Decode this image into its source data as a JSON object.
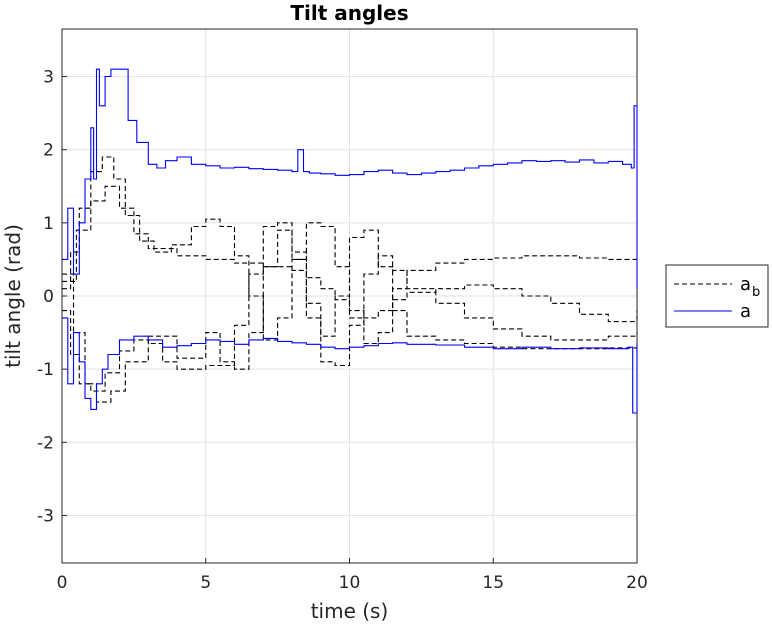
{
  "chart_data": {
    "type": "line",
    "title": "Tilt angles",
    "xlabel": "time (s)",
    "ylabel": "tilt angle (rad)",
    "xlim": [
      0,
      20
    ],
    "ylim": [
      -3.65,
      3.65
    ],
    "xticks": [
      0,
      5,
      10,
      15,
      20
    ],
    "xtick_labels": [
      "0",
      "5",
      "10",
      "15",
      "20"
    ],
    "yticks": [
      -3,
      -2,
      -1,
      0,
      1,
      2,
      3
    ],
    "ytick_labels": [
      "-3",
      "-2",
      "-1",
      "0",
      "1",
      "2",
      "3"
    ],
    "grid": true,
    "legend_placement": "outside-right",
    "legend": [
      {
        "label": "a",
        "subscript": "b",
        "style": "dashed",
        "color": "#000000"
      },
      {
        "label": "a",
        "subscript": "",
        "style": "solid",
        "color": "#0000ff"
      }
    ],
    "series": [
      {
        "group": "a_b",
        "style": "dashed",
        "color": "#000000",
        "x": [
          0,
          0.3,
          0.6,
          1.0,
          1.4,
          1.8,
          2.2,
          2.7,
          3.2,
          3.8,
          4.5,
          5.0,
          5.5,
          6.0,
          6.5,
          7.0,
          7.5,
          8.0,
          8.5,
          9.0,
          9.5,
          10.0,
          10.5,
          11.0,
          11.5,
          12.0,
          13.0,
          14.0,
          15.0,
          16.0,
          17.0,
          18.0,
          19.0,
          20.0
        ],
        "y": [
          0.1,
          0.6,
          1.2,
          1.7,
          1.9,
          1.6,
          1.1,
          0.75,
          0.6,
          0.7,
          0.95,
          1.05,
          0.95,
          0.55,
          0.0,
          -0.6,
          -0.3,
          0.5,
          1.0,
          0.95,
          0.4,
          -0.3,
          -0.65,
          -0.5,
          0.1,
          0.35,
          0.45,
          0.5,
          0.52,
          0.55,
          0.55,
          0.52,
          0.5,
          0.5
        ]
      },
      {
        "group": "a_b",
        "style": "dashed",
        "color": "#000000",
        "x": [
          0,
          0.3,
          0.6,
          1.0,
          1.5,
          2.0,
          2.5,
          3.0,
          3.5,
          4.0,
          5.0,
          6.0,
          6.5,
          7.0,
          7.5,
          8.0,
          8.5,
          9.0,
          9.5,
          10.0,
          10.5,
          11.0,
          11.5,
          12.0,
          13.0,
          14.0,
          15.0,
          16.0,
          17.0,
          18.0,
          19.0,
          20.0
        ],
        "y": [
          -0.2,
          -0.8,
          -1.2,
          -1.3,
          -1.05,
          -0.75,
          -0.6,
          -0.65,
          -0.9,
          -1.0,
          -0.95,
          -0.4,
          0.3,
          0.95,
          1.0,
          0.5,
          -0.3,
          -0.9,
          -0.95,
          -0.4,
          0.3,
          0.55,
          0.35,
          0.1,
          -0.1,
          -0.3,
          -0.45,
          -0.55,
          -0.6,
          -0.6,
          -0.55,
          -0.5
        ]
      },
      {
        "group": "a_b",
        "style": "dashed",
        "color": "#000000",
        "x": [
          0,
          0.4,
          0.8,
          1.2,
          1.7,
          2.2,
          3.0,
          4.0,
          5.0,
          5.5,
          6.0,
          6.5,
          7.0,
          7.5,
          8.0,
          8.5,
          9.0,
          9.5,
          10.0,
          10.5,
          11.0,
          11.5,
          12.0,
          13.0,
          14.0,
          15.0,
          16.0,
          17.0,
          18.0,
          19.0,
          20.0
        ],
        "y": [
          0.3,
          -0.5,
          -1.2,
          -1.45,
          -1.3,
          -0.9,
          -0.55,
          -0.85,
          -0.5,
          -0.9,
          -1.0,
          -0.5,
          0.4,
          0.9,
          0.6,
          -0.1,
          -0.55,
          0.0,
          0.8,
          0.9,
          0.4,
          -0.2,
          -0.55,
          -0.6,
          -0.65,
          -0.7,
          -0.72,
          -0.72,
          -0.72,
          -0.71,
          -0.7
        ]
      },
      {
        "group": "a_b",
        "style": "dashed",
        "color": "#000000",
        "x": [
          0,
          0.5,
          1.0,
          1.5,
          2.0,
          2.5,
          3.0,
          4.0,
          5.0,
          6.0,
          7.0,
          8.0,
          8.5,
          9.0,
          9.5,
          10.0,
          10.5,
          11.0,
          11.5,
          12.0,
          13.0,
          14.0,
          15.0,
          16.0,
          17.0,
          18.0,
          19.0,
          20.0
        ],
        "y": [
          0.2,
          0.9,
          1.3,
          1.5,
          1.2,
          0.85,
          0.65,
          0.55,
          0.5,
          0.45,
          0.4,
          0.35,
          0.25,
          0.1,
          -0.05,
          -0.2,
          -0.3,
          -0.2,
          -0.05,
          0.05,
          0.1,
          0.15,
          0.1,
          0.0,
          -0.1,
          -0.25,
          -0.35,
          -0.2
        ]
      },
      {
        "group": "a",
        "style": "solid",
        "color": "#0000ff",
        "x": [
          0,
          0.2,
          0.4,
          0.6,
          0.8,
          1.0,
          1.1,
          1.2,
          1.3,
          1.5,
          1.7,
          2.0,
          2.3,
          2.6,
          3.0,
          3.3,
          3.6,
          4.0,
          4.5,
          5.0,
          5.5,
          6.0,
          6.5,
          7.0,
          7.5,
          8.0,
          8.2,
          8.4,
          8.6,
          9.0,
          9.5,
          10.0,
          10.5,
          11.0,
          11.5,
          12.0,
          12.5,
          13.0,
          13.5,
          14.0,
          14.5,
          15.0,
          15.5,
          16.0,
          16.5,
          17.0,
          17.5,
          18.0,
          18.5,
          19.0,
          19.5,
          19.8,
          19.9,
          20.0
        ],
        "y": [
          0.5,
          1.2,
          0.3,
          1.0,
          1.6,
          2.3,
          1.6,
          3.1,
          2.6,
          3.0,
          3.1,
          3.1,
          2.4,
          2.1,
          1.8,
          1.75,
          1.85,
          1.9,
          1.8,
          1.78,
          1.75,
          1.76,
          1.74,
          1.73,
          1.72,
          1.7,
          2.0,
          1.7,
          1.68,
          1.67,
          1.65,
          1.66,
          1.7,
          1.72,
          1.68,
          1.66,
          1.68,
          1.7,
          1.72,
          1.75,
          1.78,
          1.8,
          1.82,
          1.85,
          1.84,
          1.85,
          1.83,
          1.86,
          1.82,
          1.84,
          1.8,
          1.75,
          2.6,
          0.1
        ]
      },
      {
        "group": "a",
        "style": "solid",
        "color": "#0000ff",
        "x": [
          0,
          0.2,
          0.4,
          0.6,
          0.8,
          1.0,
          1.2,
          1.4,
          1.6,
          2.0,
          2.5,
          3.0,
          3.5,
          4.0,
          4.5,
          5.0,
          5.5,
          6.0,
          6.5,
          7.0,
          7.5,
          8.0,
          8.5,
          9.0,
          9.5,
          10.0,
          10.5,
          11.0,
          11.5,
          12.0,
          13.0,
          14.0,
          15.0,
          16.0,
          17.0,
          18.0,
          19.0,
          19.7,
          19.85,
          20.0
        ],
        "y": [
          -0.3,
          -1.2,
          -0.5,
          -0.9,
          -1.4,
          -1.55,
          -1.2,
          -1.0,
          -0.8,
          -0.6,
          -0.55,
          -0.6,
          -0.7,
          -0.68,
          -0.65,
          -0.6,
          -0.62,
          -0.66,
          -0.6,
          -0.58,
          -0.62,
          -0.64,
          -0.66,
          -0.7,
          -0.72,
          -0.7,
          -0.68,
          -0.65,
          -0.64,
          -0.66,
          -0.67,
          -0.7,
          -0.72,
          -0.7,
          -0.72,
          -0.71,
          -0.72,
          -0.7,
          -1.6,
          -0.65
        ]
      }
    ]
  }
}
